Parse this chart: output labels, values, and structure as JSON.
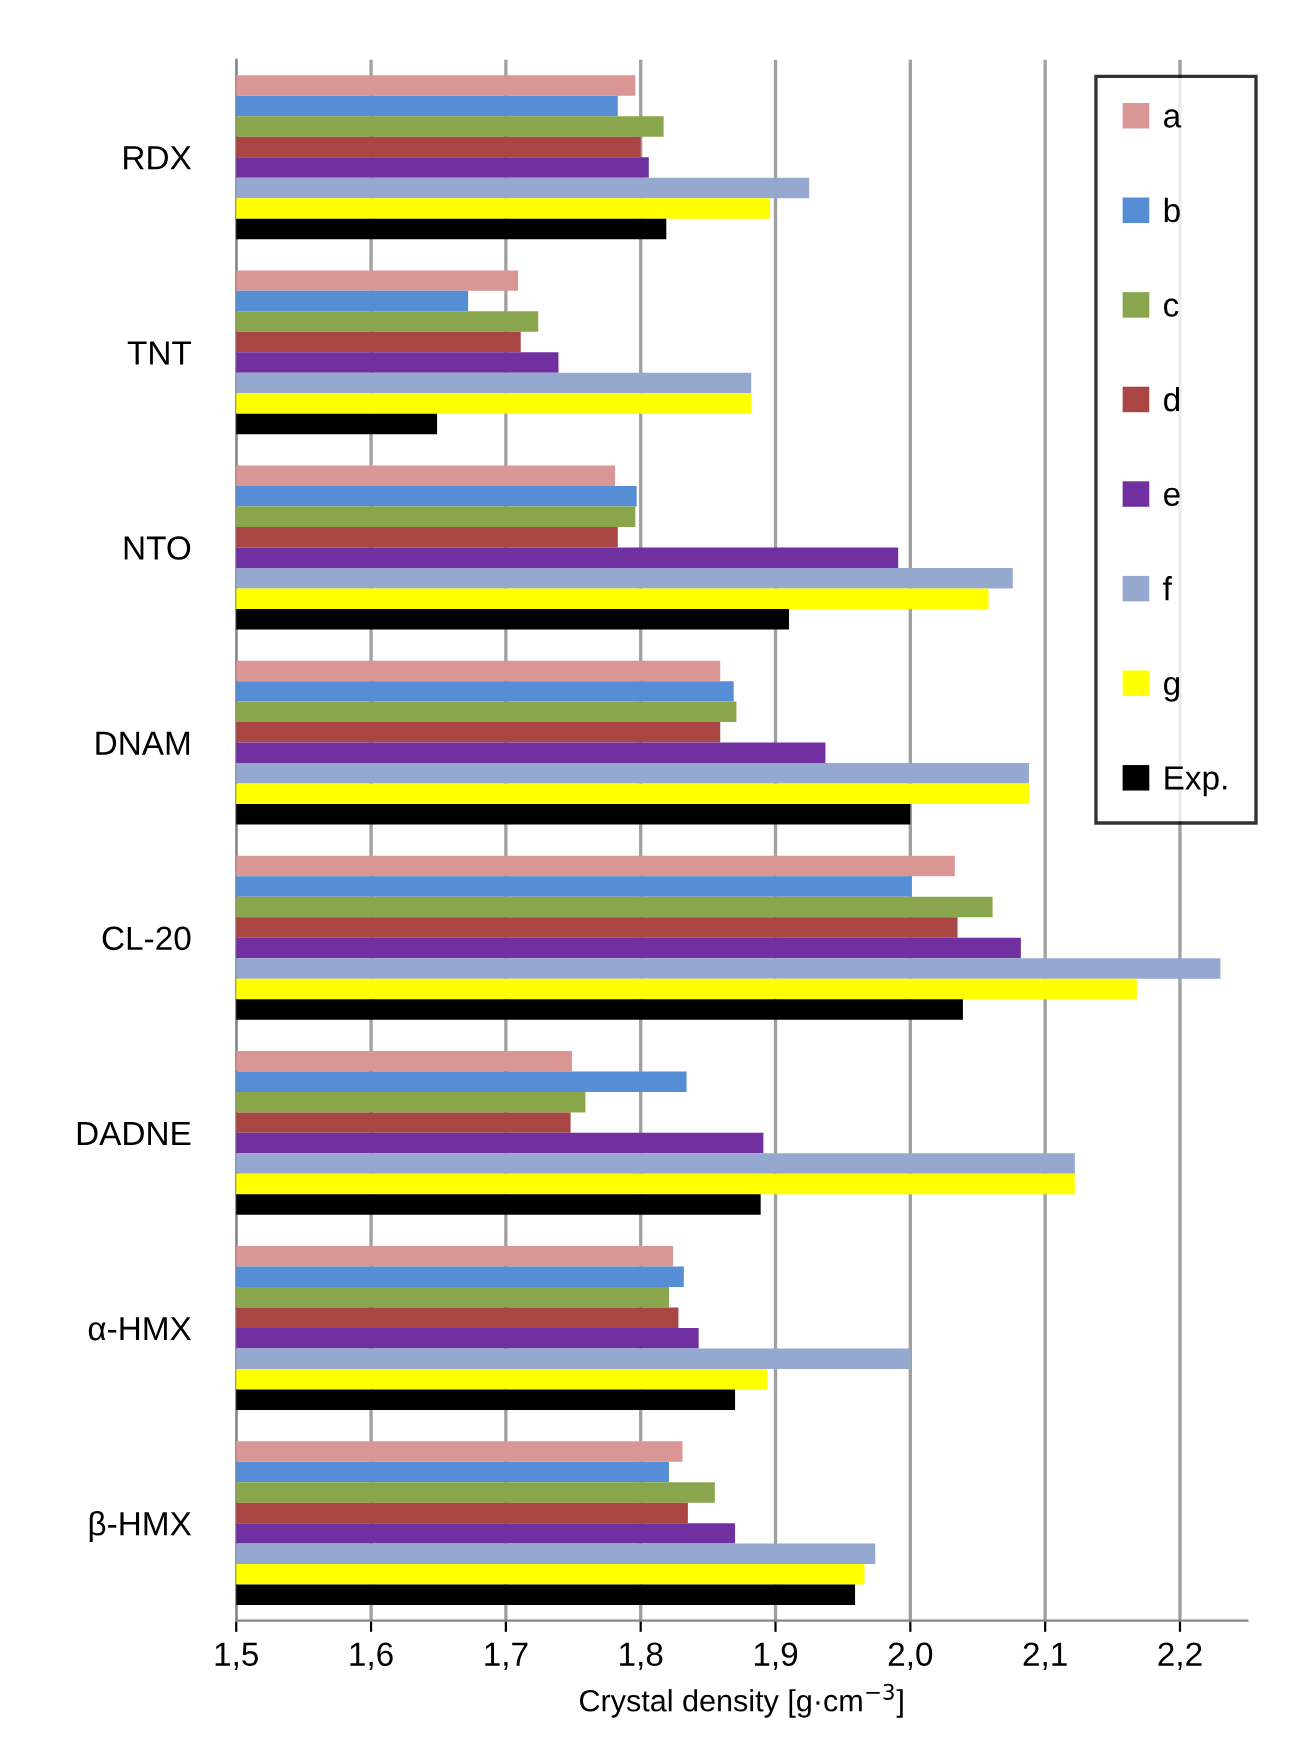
{
  "chart_data": {
    "type": "bar",
    "orientation": "horizontal",
    "xlabel": "Crystal density [g·cm$^{−3}$]",
    "categories": [
      "RDX",
      "TNT",
      "NTO",
      "DNAM",
      "CL-20",
      "DADNE",
      "α-HMX",
      "β-HMX"
    ],
    "series": [
      {
        "name": "a",
        "color": "#d99694",
        "values": [
          1.796,
          1.709,
          1.781,
          1.859,
          2.033,
          1.749,
          1.824,
          1.831
        ]
      },
      {
        "name": "b",
        "color": "#558ed5",
        "values": [
          1.783,
          1.672,
          1.797,
          1.869,
          2.001,
          1.834,
          1.832,
          1.821
        ]
      },
      {
        "name": "c",
        "color": "#8aa64d",
        "values": [
          1.817,
          1.724,
          1.796,
          1.871,
          2.061,
          1.759,
          1.821,
          1.855
        ]
      },
      {
        "name": "d",
        "color": "#a94643",
        "values": [
          1.8,
          1.711,
          1.783,
          1.859,
          2.035,
          1.748,
          1.828,
          1.835
        ]
      },
      {
        "name": "e",
        "color": "#7030a0",
        "values": [
          1.806,
          1.739,
          1.991,
          1.937,
          2.082,
          1.891,
          1.843,
          1.87
        ]
      },
      {
        "name": "f",
        "color": "#95a9d0",
        "values": [
          1.925,
          1.882,
          2.076,
          2.088,
          2.23,
          2.122,
          2.0,
          1.974
        ]
      },
      {
        "name": "g",
        "color": "#ffff00",
        "values": [
          1.896,
          1.882,
          2.058,
          2.088,
          2.168,
          2.122,
          1.894,
          1.966
        ]
      },
      {
        "name": "Exp.",
        "color": "#000000",
        "values": [
          1.819,
          1.649,
          1.91,
          2.0,
          2.039,
          1.889,
          1.87,
          1.959
        ]
      }
    ],
    "xlim": [
      1.5,
      2.25
    ],
    "xticks": [
      {
        "value": 1.5,
        "label": "1,5"
      },
      {
        "value": 1.6,
        "label": "1,6"
      },
      {
        "value": 1.7,
        "label": "1,7"
      },
      {
        "value": 1.8,
        "label": "1,8"
      },
      {
        "value": 1.9,
        "label": "1,9"
      },
      {
        "value": 2.0,
        "label": "2,0"
      },
      {
        "value": 2.1,
        "label": "2,1"
      },
      {
        "value": 2.2,
        "label": "2,2"
      }
    ],
    "grid": "x",
    "legend": "top right"
  }
}
